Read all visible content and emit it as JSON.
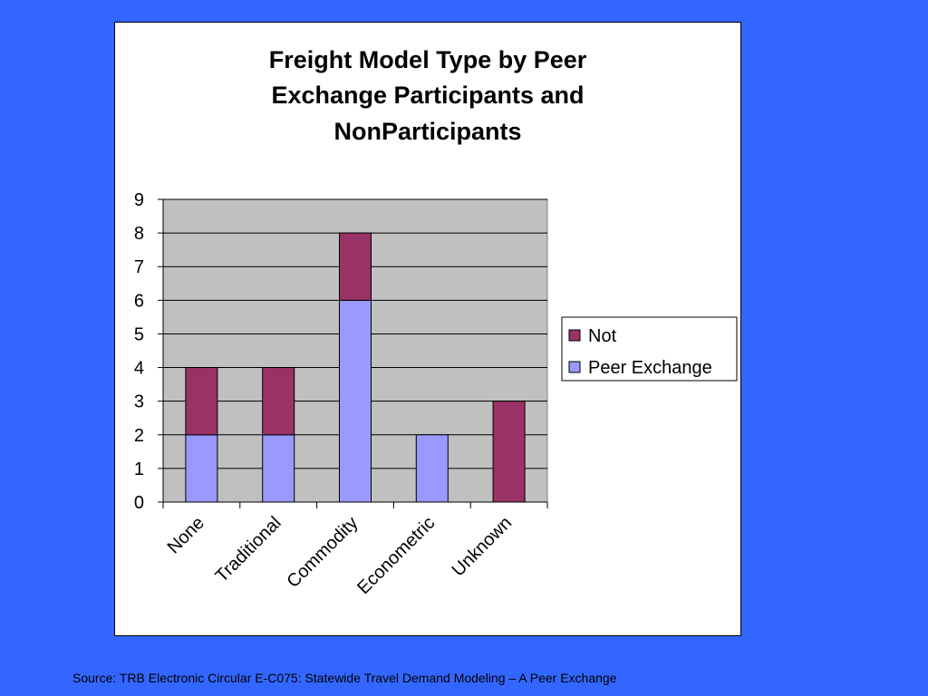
{
  "colors": {
    "slide_background": "#3366ff",
    "plot_background": "#c0c0c0",
    "gridline": "#000000"
  },
  "source_note": "Source: TRB Electronic Circular E-C075: Statewide Travel Demand Modeling – A Peer Exchange",
  "chart_data": {
    "type": "bar",
    "stacked": true,
    "title_lines": [
      "Freight Model Type by Peer",
      "Exchange Participants and",
      "NonParticipants"
    ],
    "xlabel": "",
    "ylabel": "",
    "categories": [
      "None",
      "Traditional",
      "Commodity",
      "Econometric",
      "Unknown"
    ],
    "y_ticks": [
      "0",
      "1",
      "2",
      "3",
      "4",
      "5",
      "6",
      "7",
      "8",
      "9"
    ],
    "ylim": [
      0,
      9
    ],
    "grid": true,
    "legend_position": "right",
    "series": [
      {
        "name": "Peer Exchange",
        "values": [
          2,
          2,
          6,
          2,
          0
        ],
        "color": "#9999ff"
      },
      {
        "name": "Not",
        "values": [
          2,
          2,
          2,
          0,
          3
        ],
        "color": "#993366"
      }
    ]
  }
}
